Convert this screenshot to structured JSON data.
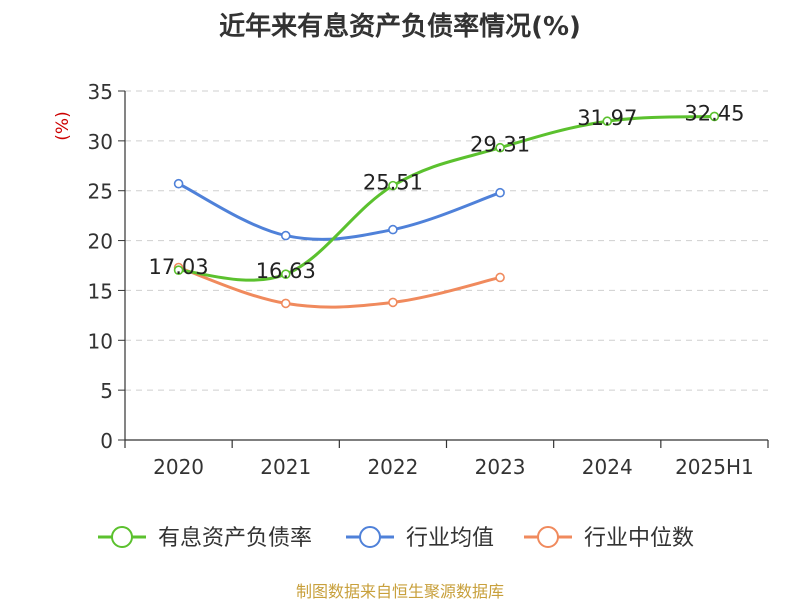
{
  "source": "制图数据来自恒生聚源数据库",
  "chart_data": {
    "type": "line",
    "title": "近年来有息资产负债率情况(%)",
    "ylabel": "(%)",
    "xlabel": "",
    "categories": [
      "2020",
      "2021",
      "2022",
      "2023",
      "2024",
      "2025H1"
    ],
    "ylim": [
      0,
      35
    ],
    "yticks": [
      0,
      5,
      10,
      15,
      20,
      25,
      30,
      35
    ],
    "grid": true,
    "legend_position": "bottom",
    "series": [
      {
        "name": "有息资产负债率",
        "color": "#5bc12e",
        "values": [
          17.03,
          16.63,
          25.51,
          29.31,
          31.97,
          32.45
        ],
        "labels": true
      },
      {
        "name": "行业均值",
        "color": "#4f81d9",
        "values": [
          25.7,
          20.5,
          21.1,
          24.8,
          null,
          null
        ],
        "labels": false
      },
      {
        "name": "行业中位数",
        "color": "#f08a5d",
        "values": [
          17.3,
          13.7,
          13.8,
          16.3,
          null,
          null
        ],
        "labels": false
      }
    ]
  }
}
